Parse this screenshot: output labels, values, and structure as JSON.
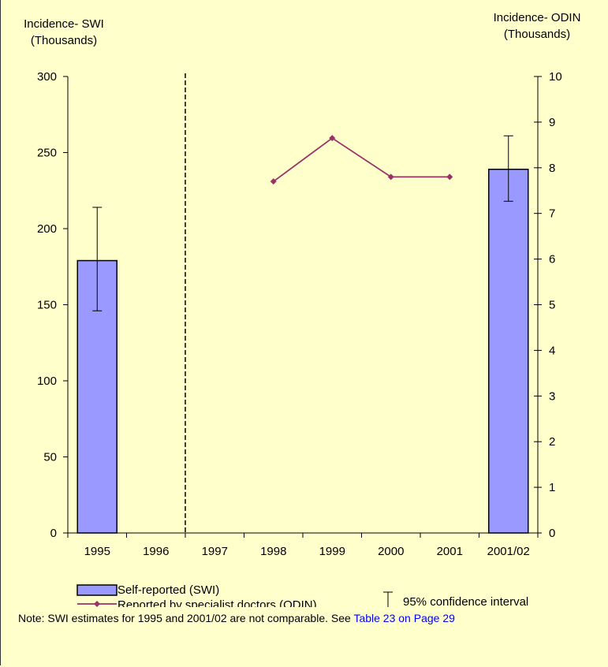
{
  "chart_data": {
    "type": "bar",
    "categories": [
      "1995",
      "1996",
      "1997",
      "1998",
      "1999",
      "2000",
      "2001",
      "2001/02"
    ],
    "left_axis_title": [
      "Incidence- SWI",
      "(Thousands)"
    ],
    "right_axis_title": [
      "Incidence- ODIN",
      "(Thousands)"
    ],
    "left_ylim": [
      0,
      300
    ],
    "left_ticks": [
      0,
      50,
      100,
      150,
      200,
      250,
      300
    ],
    "right_ylim": [
      0,
      10
    ],
    "right_ticks": [
      0,
      1,
      2,
      3,
      4,
      5,
      6,
      7,
      8,
      9,
      10
    ],
    "break_after_category": "1996",
    "bar_series": {
      "name": "Self-reported (SWI)",
      "axis": "left",
      "color": "#9999ff",
      "points": [
        {
          "category": "1995",
          "value": 179,
          "ci_low": 146,
          "ci_high": 214
        },
        {
          "category": "2001/02",
          "value": 239,
          "ci_low": 218,
          "ci_high": 261
        }
      ]
    },
    "line_series": {
      "name": "Reported by specialist doctors (ODIN)",
      "axis": "right",
      "color": "#993366",
      "points": [
        {
          "category": "1998",
          "value": 7.7
        },
        {
          "category": "1999",
          "value": 8.65
        },
        {
          "category": "2000",
          "value": 7.8
        },
        {
          "category": "2001",
          "value": 7.8
        }
      ]
    },
    "legend": {
      "bar_label": "Self-reported (SWI)",
      "line_label": "Reported by specialist doctors (ODIN)",
      "ci_label": "95% confidence interval",
      "placement": "bottom"
    }
  },
  "note": {
    "text": "Note: SWI estimates for 1995 and 2001/02 are not comparable. See ",
    "link": "Table 23 on Page 29"
  }
}
